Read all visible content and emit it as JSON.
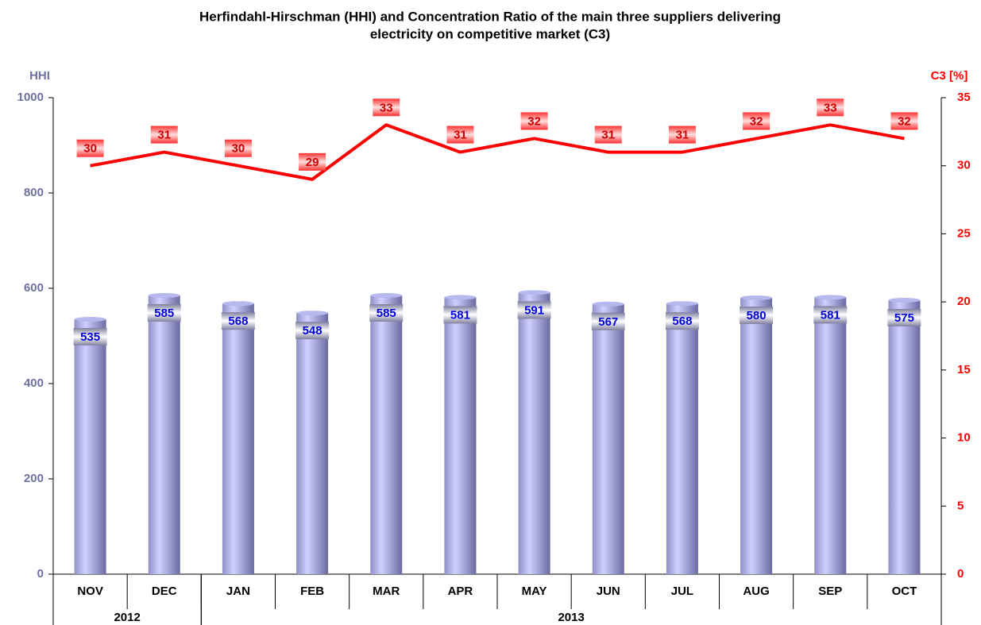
{
  "chart_data": {
    "type": "bar_line",
    "title": [
      "Herfindahl-Hirschman (HHI) and Concentration Ratio of the main three suppliers delivering",
      "electricity on competitive market (C3)"
    ],
    "y_label": "HHI",
    "y2_label": "C3 [%]",
    "categories": [
      "NOV",
      "DEC",
      "JAN",
      "FEB",
      "MAR",
      "APR",
      "MAY",
      "JUN",
      "JUL",
      "AUG",
      "SEP",
      "OCT"
    ],
    "groups": [
      {
        "label": "2012",
        "count": 2
      },
      {
        "label": "2013",
        "count": 10
      }
    ],
    "series": [
      {
        "name": "HHI",
        "type": "bar",
        "color": "#b8b8f0",
        "values": [
          535,
          585,
          568,
          548,
          585,
          581,
          591,
          567,
          568,
          580,
          581,
          575
        ]
      },
      {
        "name": "C3",
        "type": "line",
        "axis": "y2",
        "color": "#ff0000",
        "values": [
          30,
          31,
          30,
          29,
          33,
          31,
          32,
          31,
          31,
          32,
          33,
          32
        ]
      }
    ],
    "ylim": [
      0,
      1000
    ],
    "yticks": [
      0,
      200,
      400,
      600,
      800,
      1000
    ],
    "y2lim": [
      0,
      35
    ],
    "y2ticks": [
      0,
      5,
      10,
      15,
      20,
      25,
      30,
      35
    ]
  }
}
